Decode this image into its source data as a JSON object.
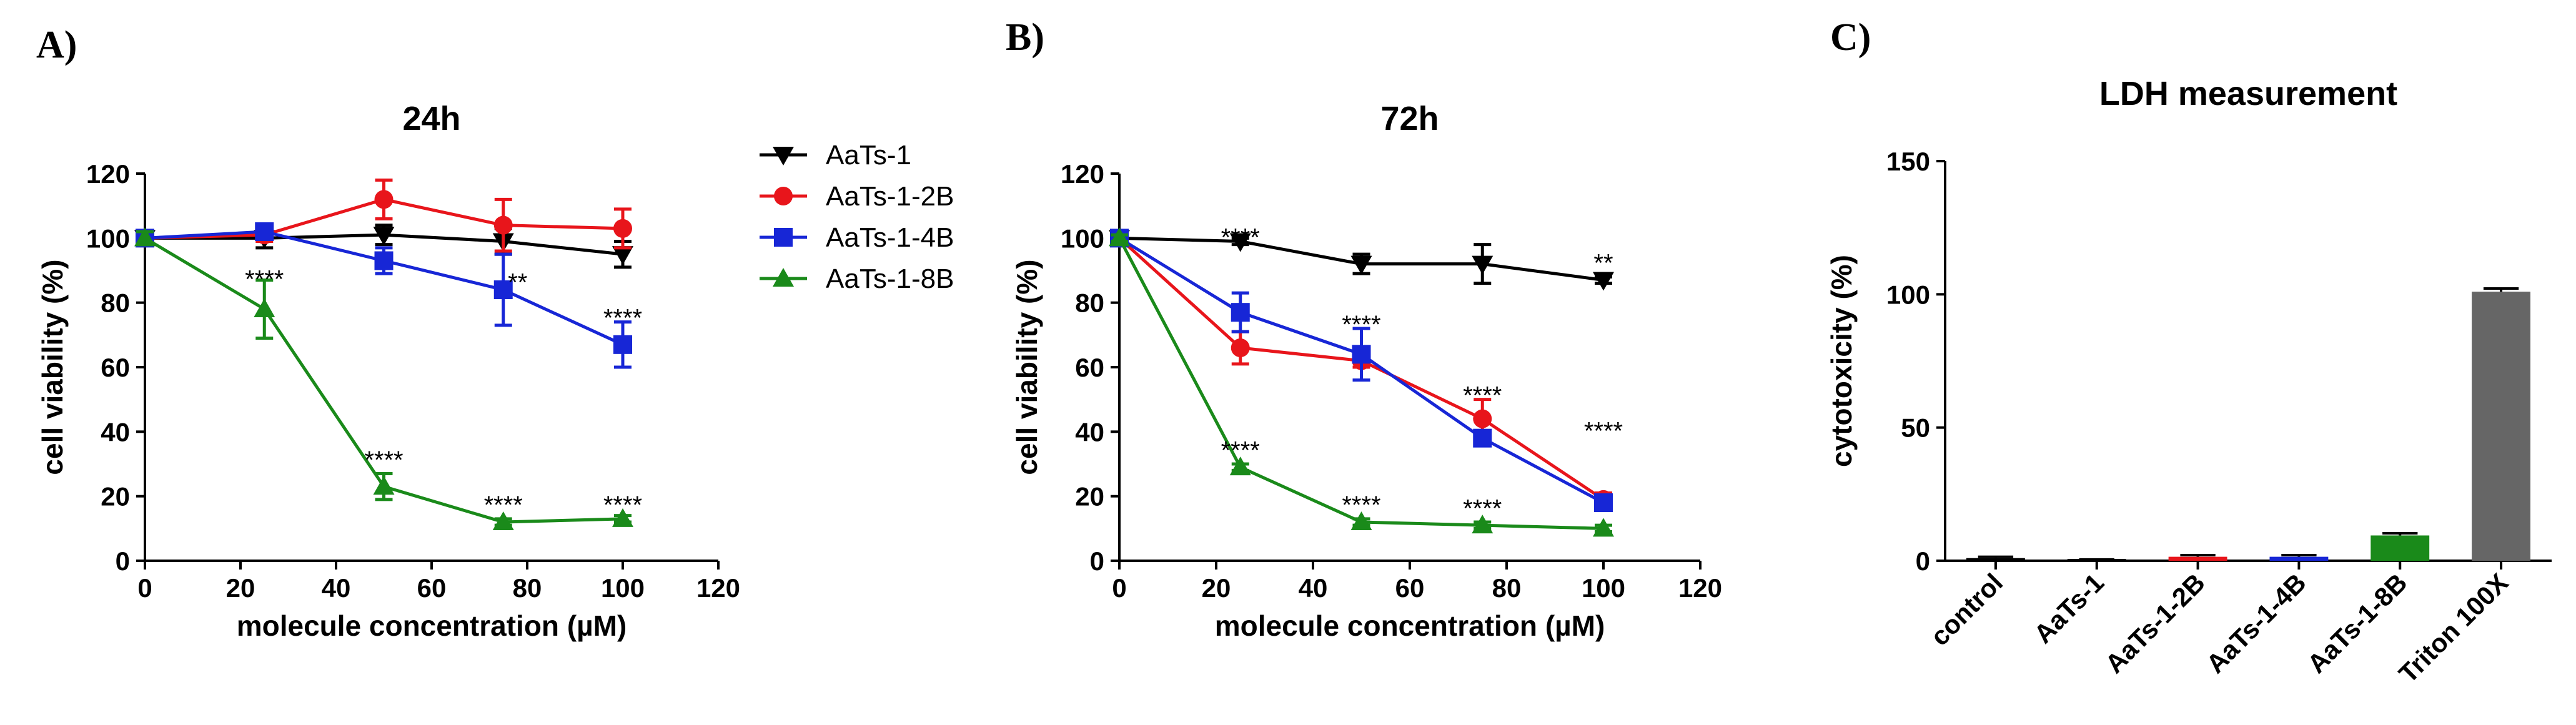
{
  "panels": {
    "a": "A)",
    "b": "B)",
    "c": "C)"
  },
  "colors": {
    "AaTs-1": "#000000",
    "AaTs-1-2B": "#e8151b",
    "AaTs-1-4B": "#1726d6",
    "AaTs-1-8B": "#1a8a1a"
  },
  "chart_data": [
    {
      "type": "line",
      "title": "24h",
      "xlabel": "molecule concentration (µM)",
      "ylabel": "cell viability (%)",
      "xlim": [
        0,
        120
      ],
      "ylim": [
        0,
        120
      ],
      "xticks": [
        0,
        20,
        40,
        60,
        80,
        100,
        120
      ],
      "yticks": [
        0,
        20,
        40,
        60,
        80,
        100,
        120
      ],
      "x": [
        0,
        25,
        50,
        75,
        100
      ],
      "series": [
        {
          "name": "AaTs-1",
          "marker": "triangle-down",
          "values": [
            100,
            100,
            101,
            99,
            95
          ],
          "errors": [
            2,
            3,
            3,
            4,
            4
          ]
        },
        {
          "name": "AaTs-1-2B",
          "marker": "circle",
          "values": [
            100,
            101,
            112,
            104,
            103
          ],
          "errors": [
            2,
            2,
            6,
            8,
            6
          ]
        },
        {
          "name": "AaTs-1-4B",
          "marker": "square",
          "values": [
            100,
            102,
            93,
            84,
            67
          ],
          "errors": [
            2,
            2,
            4,
            11,
            7
          ]
        },
        {
          "name": "AaTs-1-8B",
          "marker": "triangle-up",
          "values": [
            100,
            78,
            23,
            12,
            13
          ],
          "errors": [
            2,
            9,
            4,
            1,
            1
          ]
        }
      ],
      "annotations": [
        {
          "x": 25,
          "y": 87,
          "text": "****"
        },
        {
          "x": 78,
          "y": 86,
          "text": "**"
        },
        {
          "x": 100,
          "y": 75,
          "text": "****"
        },
        {
          "x": 50,
          "y": 31,
          "text": "****"
        },
        {
          "x": 75,
          "y": 17,
          "text": "****"
        },
        {
          "x": 100,
          "y": 17,
          "text": "****"
        }
      ]
    },
    {
      "type": "line",
      "title": "72h",
      "xlabel": "molecule concentration (µM)",
      "ylabel": "cell viability (%)",
      "xlim": [
        0,
        120
      ],
      "ylim": [
        0,
        120
      ],
      "xticks": [
        0,
        20,
        40,
        60,
        80,
        100,
        120
      ],
      "yticks": [
        0,
        20,
        40,
        60,
        80,
        100,
        120
      ],
      "x": [
        0,
        25,
        50,
        75,
        100
      ],
      "series": [
        {
          "name": "AaTs-1",
          "marker": "triangle-down",
          "values": [
            100,
            99,
            92,
            92,
            87
          ],
          "errors": [
            1,
            1,
            3,
            6,
            1
          ]
        },
        {
          "name": "AaTs-1-2B",
          "marker": "circle",
          "values": [
            100,
            66,
            62,
            44,
            19
          ],
          "errors": [
            1,
            5,
            2,
            6,
            2
          ]
        },
        {
          "name": "AaTs-1-4B",
          "marker": "square",
          "values": [
            100,
            77,
            64,
            38,
            18
          ],
          "errors": [
            1,
            6,
            8,
            2,
            2
          ]
        },
        {
          "name": "AaTs-1-8B",
          "marker": "triangle-up",
          "values": [
            100,
            29,
            12,
            11,
            10
          ],
          "errors": [
            1,
            1,
            1,
            1,
            1
          ]
        }
      ],
      "annotations": [
        {
          "x": 25,
          "y": 100,
          "text": "****"
        },
        {
          "x": 50,
          "y": 73,
          "text": "****"
        },
        {
          "x": 75,
          "y": 51,
          "text": "****"
        },
        {
          "x": 100,
          "y": 92,
          "text": "**"
        },
        {
          "x": 25,
          "y": 34,
          "text": "****"
        },
        {
          "x": 50,
          "y": 17,
          "text": "****"
        },
        {
          "x": 75,
          "y": 16,
          "text": "****"
        },
        {
          "x": 100,
          "y": 40,
          "text": "****"
        }
      ]
    },
    {
      "type": "bar",
      "title": "LDH measurement",
      "xlabel": "",
      "ylabel": "cytotoxicity (%)",
      "ylim": [
        0,
        150
      ],
      "yticks": [
        0,
        50,
        100,
        150
      ],
      "categories": [
        "control",
        "AaTs-1",
        "AaTs-1-2B",
        "AaTs-1-4B",
        "AaTs-1-8B",
        "Triton 100X"
      ],
      "values": [
        1,
        0,
        1.5,
        1.5,
        9.5,
        101
      ],
      "errors": [
        0.5,
        0.5,
        0.6,
        0.6,
        0.8,
        1.2
      ],
      "bar_colors": [
        "#000000",
        "#000000",
        "#e8151b",
        "#1726d6",
        "#1a8a1a",
        "#666666"
      ]
    }
  ],
  "legend": [
    "AaTs-1",
    "AaTs-1-2B",
    "AaTs-1-4B",
    "AaTs-1-8B"
  ]
}
